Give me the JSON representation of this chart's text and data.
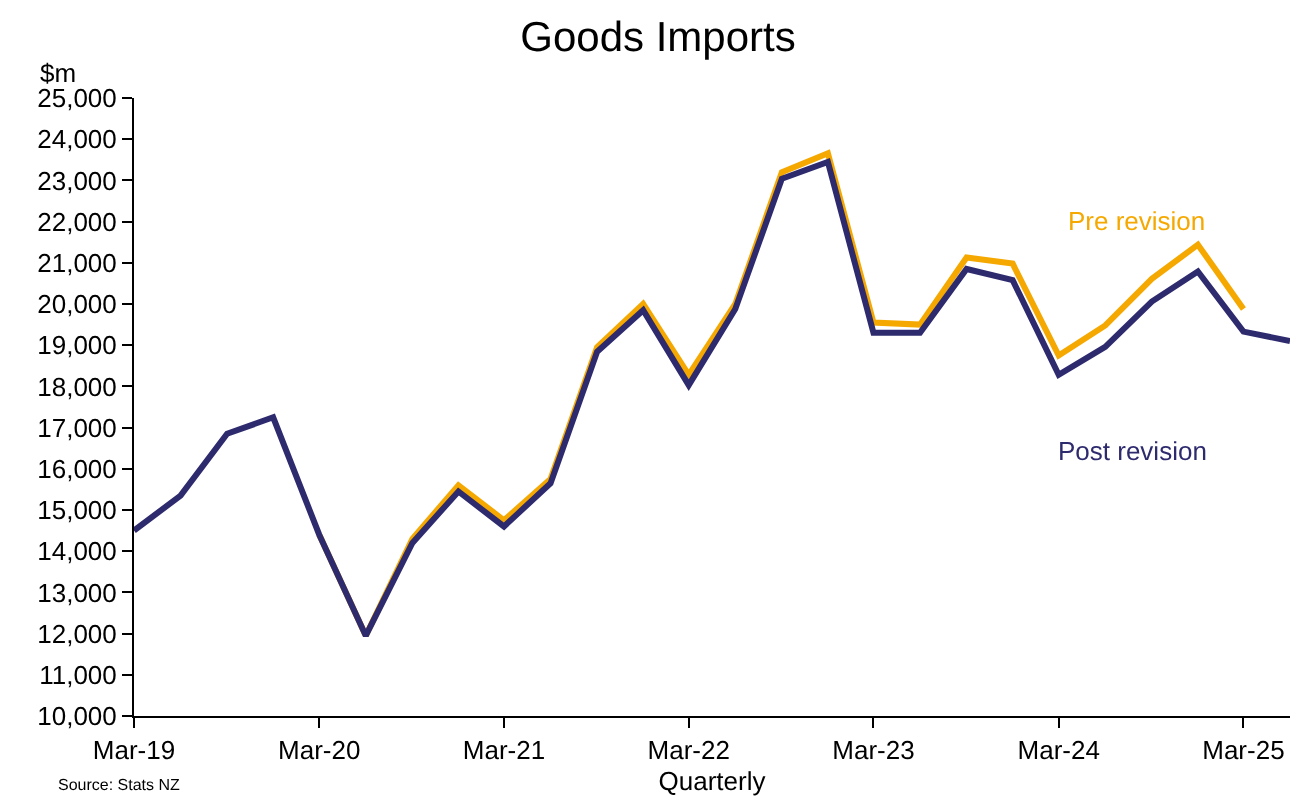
{
  "chart_data": {
    "type": "line",
    "title": "Goods Imports",
    "xlabel": "Quarterly",
    "ylabel": "$m",
    "x": [
      "2019-03",
      "2019-06",
      "2019-09",
      "2019-12",
      "2020-03",
      "2020-06",
      "2020-09",
      "2020-12",
      "2021-03",
      "2021-06",
      "2021-09",
      "2021-12",
      "2022-03",
      "2022-06",
      "2022-09",
      "2022-12",
      "2023-03",
      "2023-06",
      "2023-09",
      "2023-12",
      "2024-03",
      "2024-06",
      "2024-09",
      "2024-12",
      "2025-03",
      "2025-06"
    ],
    "series": [
      {
        "name": "Pre revision",
        "color": "#f5a800",
        "values": [
          null,
          null,
          null,
          null,
          14400,
          11950,
          14300,
          15600,
          14750,
          15750,
          18950,
          20000,
          18280,
          20000,
          23200,
          23660,
          19550,
          19500,
          21130,
          20980,
          18750,
          19480,
          20610,
          21440,
          19880,
          null
        ]
      },
      {
        "name": "Post revision",
        "color": "#2e2a6e",
        "values": [
          14500,
          15350,
          16850,
          17250,
          14400,
          11950,
          14200,
          15450,
          14600,
          15650,
          18840,
          19850,
          18030,
          19880,
          23040,
          23450,
          19300,
          19300,
          20850,
          20580,
          18280,
          18960,
          20060,
          20790,
          19330,
          19100
        ]
      }
    ],
    "xlim": [
      "2019-03",
      "2025-06"
    ],
    "xticks": [
      {
        "value": "2019-03",
        "label": "Mar-19"
      },
      {
        "value": "2020-03",
        "label": "Mar-20"
      },
      {
        "value": "2021-03",
        "label": "Mar-21"
      },
      {
        "value": "2022-03",
        "label": "Mar-22"
      },
      {
        "value": "2023-03",
        "label": "Mar-23"
      },
      {
        "value": "2024-03",
        "label": "Mar-24"
      },
      {
        "value": "2025-03",
        "label": "Mar-25"
      }
    ],
    "ylim": [
      10000,
      25000
    ],
    "yticks": [
      {
        "value": 10000,
        "label": "10,000"
      },
      {
        "value": 11000,
        "label": "11,000"
      },
      {
        "value": 12000,
        "label": "12,000"
      },
      {
        "value": 13000,
        "label": "13,000"
      },
      {
        "value": 14000,
        "label": "14,000"
      },
      {
        "value": 15000,
        "label": "15,000"
      },
      {
        "value": 16000,
        "label": "16,000"
      },
      {
        "value": 17000,
        "label": "17,000"
      },
      {
        "value": 18000,
        "label": "18,000"
      },
      {
        "value": 19000,
        "label": "19,000"
      },
      {
        "value": 20000,
        "label": "20,000"
      },
      {
        "value": 21000,
        "label": "21,000"
      },
      {
        "value": 22000,
        "label": "22,000"
      },
      {
        "value": 23000,
        "label": "23,000"
      },
      {
        "value": 24000,
        "label": "24,000"
      },
      {
        "value": 25000,
        "label": "25,000"
      }
    ],
    "grid": false,
    "legend": false,
    "annotations": [
      "Source: Stats NZ"
    ]
  }
}
